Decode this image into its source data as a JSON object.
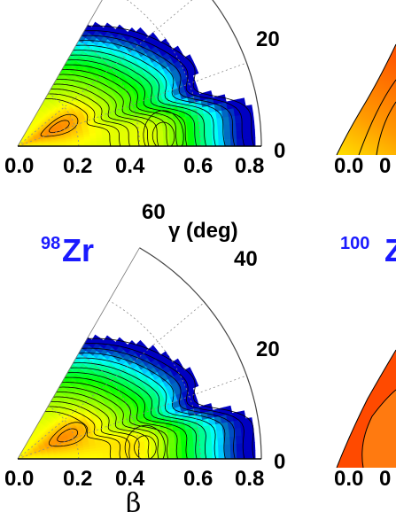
{
  "chart_data": [
    {
      "type": "contour",
      "panel": "upper-left",
      "nucleus": "",
      "r_axis": {
        "label": "",
        "ticks": [
          "0.0",
          "0.2",
          "0.4",
          "0.6",
          "0.8"
        ],
        "range": [
          0,
          0.8
        ]
      },
      "angle_axis": {
        "label": "",
        "ticks": [
          "0",
          "20"
        ],
        "range": [
          0,
          60
        ]
      },
      "minima": [
        {
          "beta": 0.15,
          "gamma": 25
        },
        {
          "beta": 0.48,
          "gamma": 4
        }
      ],
      "colormap": [
        "#ff0000",
        "#ff6a00",
        "#ffd000",
        "#7cff00",
        "#00e0ff",
        "#0000c8"
      ]
    },
    {
      "type": "contour",
      "panel": "lower-left",
      "nucleus": "Zr",
      "mass_number": "98",
      "r_axis": {
        "label": "β",
        "ticks": [
          "0.0",
          "0.2",
          "0.4",
          "0.6",
          "0.8"
        ],
        "range": [
          0,
          0.8
        ]
      },
      "angle_axis": {
        "label": "γ (deg)",
        "ticks": [
          "0",
          "20",
          "40",
          "60"
        ],
        "range": [
          0,
          60
        ]
      },
      "minima": [
        {
          "beta": 0.18,
          "gamma": 25
        },
        {
          "beta": 0.42,
          "gamma": 5
        }
      ],
      "colormap": [
        "#ff0000",
        "#ff6a00",
        "#ffd000",
        "#7cff00",
        "#00e0ff",
        "#0000c8"
      ]
    },
    {
      "type": "contour",
      "panel": "upper-right (cropped)",
      "nucleus": "",
      "r_axis": {
        "label": "",
        "ticks": [
          "0.0",
          "0"
        ]
      }
    },
    {
      "type": "contour",
      "panel": "lower-right (cropped)",
      "nucleus": "Z",
      "mass_number": "100",
      "r_axis": {
        "label": "",
        "ticks": [
          "0.0",
          "0"
        ]
      }
    }
  ]
}
